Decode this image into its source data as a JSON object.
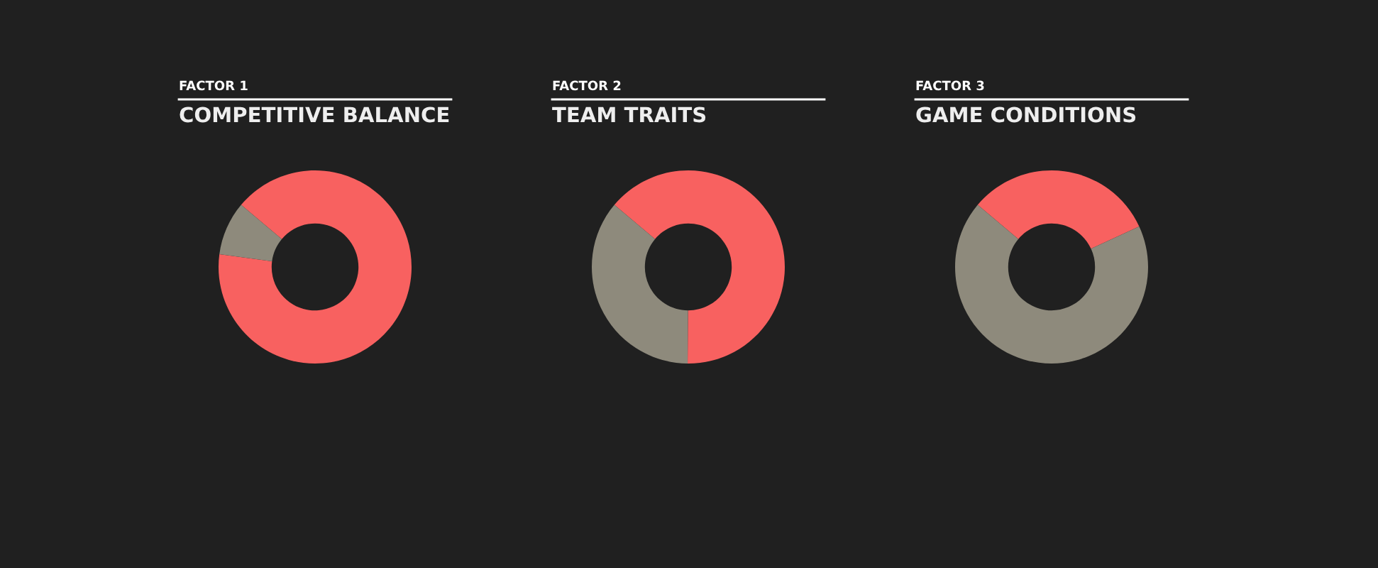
{
  "chart_data": [
    {
      "type": "donut",
      "title": "FACTOR 1",
      "subtitle": "COMPETITIVE BALANCE",
      "categories": [
        null,
        null
      ],
      "values": [
        91,
        9
      ],
      "colors": [
        "#f86160",
        "#8e8a7c"
      ]
    },
    {
      "type": "donut",
      "title": "FACTOR 2",
      "subtitle": "TEAM TRAITS",
      "categories": [
        null,
        null
      ],
      "values": [
        64,
        36
      ],
      "colors": [
        "#f86160",
        "#8e8a7c"
      ]
    },
    {
      "type": "donut",
      "title": "FACTOR 3",
      "subtitle": "GAME CONDITIONS",
      "categories": [
        null,
        null
      ],
      "values": [
        32,
        68
      ],
      "colors": [
        "#f86160",
        "#8e8a7c"
      ]
    }
  ]
}
